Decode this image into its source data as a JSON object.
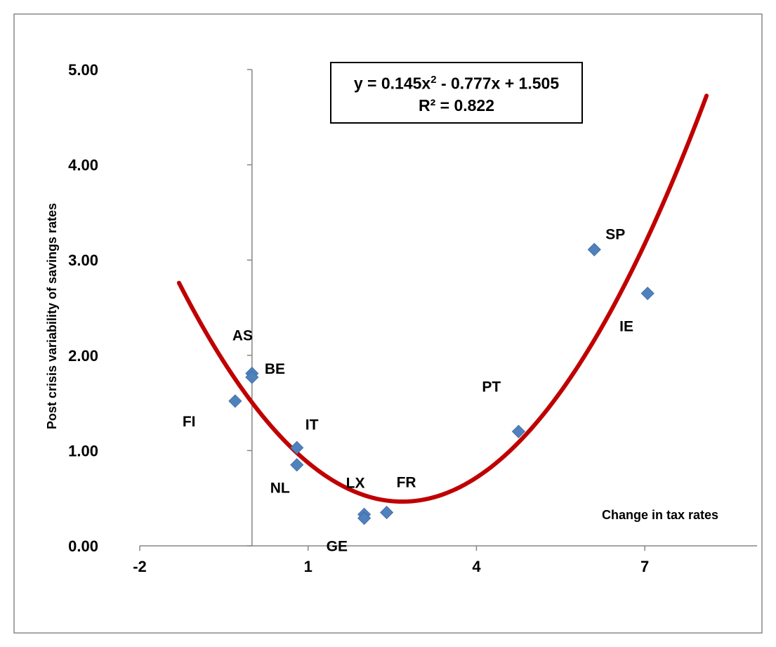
{
  "chart_data": {
    "type": "scatter",
    "title": "",
    "xlabel": "Change in tax rates",
    "ylabel": "Post crisis variability of savings  rates",
    "xlim": [
      -2,
      9
    ],
    "ylim": [
      0,
      5
    ],
    "x_ticks": [
      -2,
      1,
      4,
      7
    ],
    "x_tick_labels": [
      "-2",
      "1",
      "4",
      "7"
    ],
    "y_ticks": [
      0,
      1,
      2,
      3,
      4,
      5
    ],
    "y_tick_labels": [
      "0.00",
      "1.00",
      "2.00",
      "3.00",
      "4.00",
      "5.00"
    ],
    "y_axis_crosses_x_at": 0,
    "grid": false,
    "legend": "none",
    "point_color": "#4f81bd",
    "trendline_color": "#c00000",
    "points": [
      {
        "label": "AS",
        "x": 0.0,
        "y": 1.81
      },
      {
        "label": "BE",
        "x": 0.0,
        "y": 1.77
      },
      {
        "label": "FI",
        "x": -0.3,
        "y": 1.52
      },
      {
        "label": "IT",
        "x": 0.8,
        "y": 1.03
      },
      {
        "label": "NL",
        "x": 0.8,
        "y": 0.85
      },
      {
        "label": "LX",
        "x": 2.0,
        "y": 0.33
      },
      {
        "label": "GE",
        "x": 2.0,
        "y": 0.29
      },
      {
        "label": "FR",
        "x": 2.4,
        "y": 0.35
      },
      {
        "label": "PT",
        "x": 4.75,
        "y": 1.2
      },
      {
        "label": "SP",
        "x": 6.1,
        "y": 3.11
      },
      {
        "label": "IE",
        "x": 7.05,
        "y": 2.65
      }
    ],
    "trendline": {
      "type": "polynomial",
      "coefficients": [
        0.145,
        -0.777,
        1.505
      ],
      "x_range": [
        -1.3,
        8.1
      ],
      "equation_line1_prefix": "y = 0.145x",
      "equation_line1_sup": "2",
      "equation_line1_suffix": " - 0.777x + 1.505",
      "equation_line2": "R² = 0.822"
    }
  }
}
